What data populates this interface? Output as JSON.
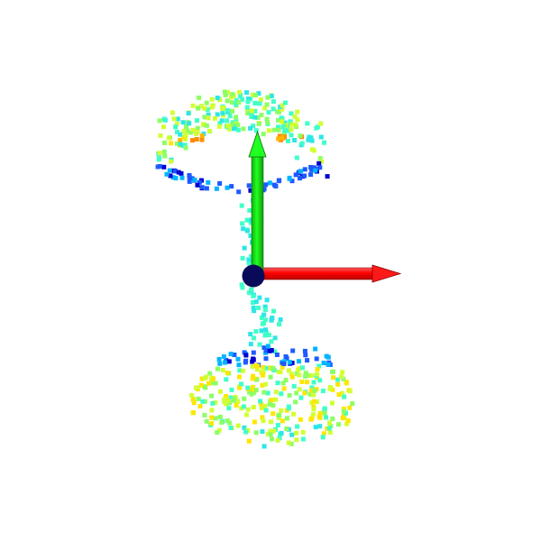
{
  "scene": {
    "background": "#ffffff",
    "colormap": [
      "#0000d0",
      "#1e5aff",
      "#00b4ff",
      "#2ee6e6",
      "#40ffc8",
      "#8cff64",
      "#d2ff32",
      "#ffe600",
      "#ffb400",
      "#ff8c00"
    ],
    "object_parts": [
      "upper-canopy",
      "stem",
      "lower-base"
    ],
    "axes": [
      {
        "name": "x-axis",
        "color": "#ff0000",
        "direction": "right"
      },
      {
        "name": "y-axis",
        "color": "#00ff00",
        "direction": "up"
      }
    ],
    "origin_marker": {
      "color": "#0a0a5a"
    }
  }
}
